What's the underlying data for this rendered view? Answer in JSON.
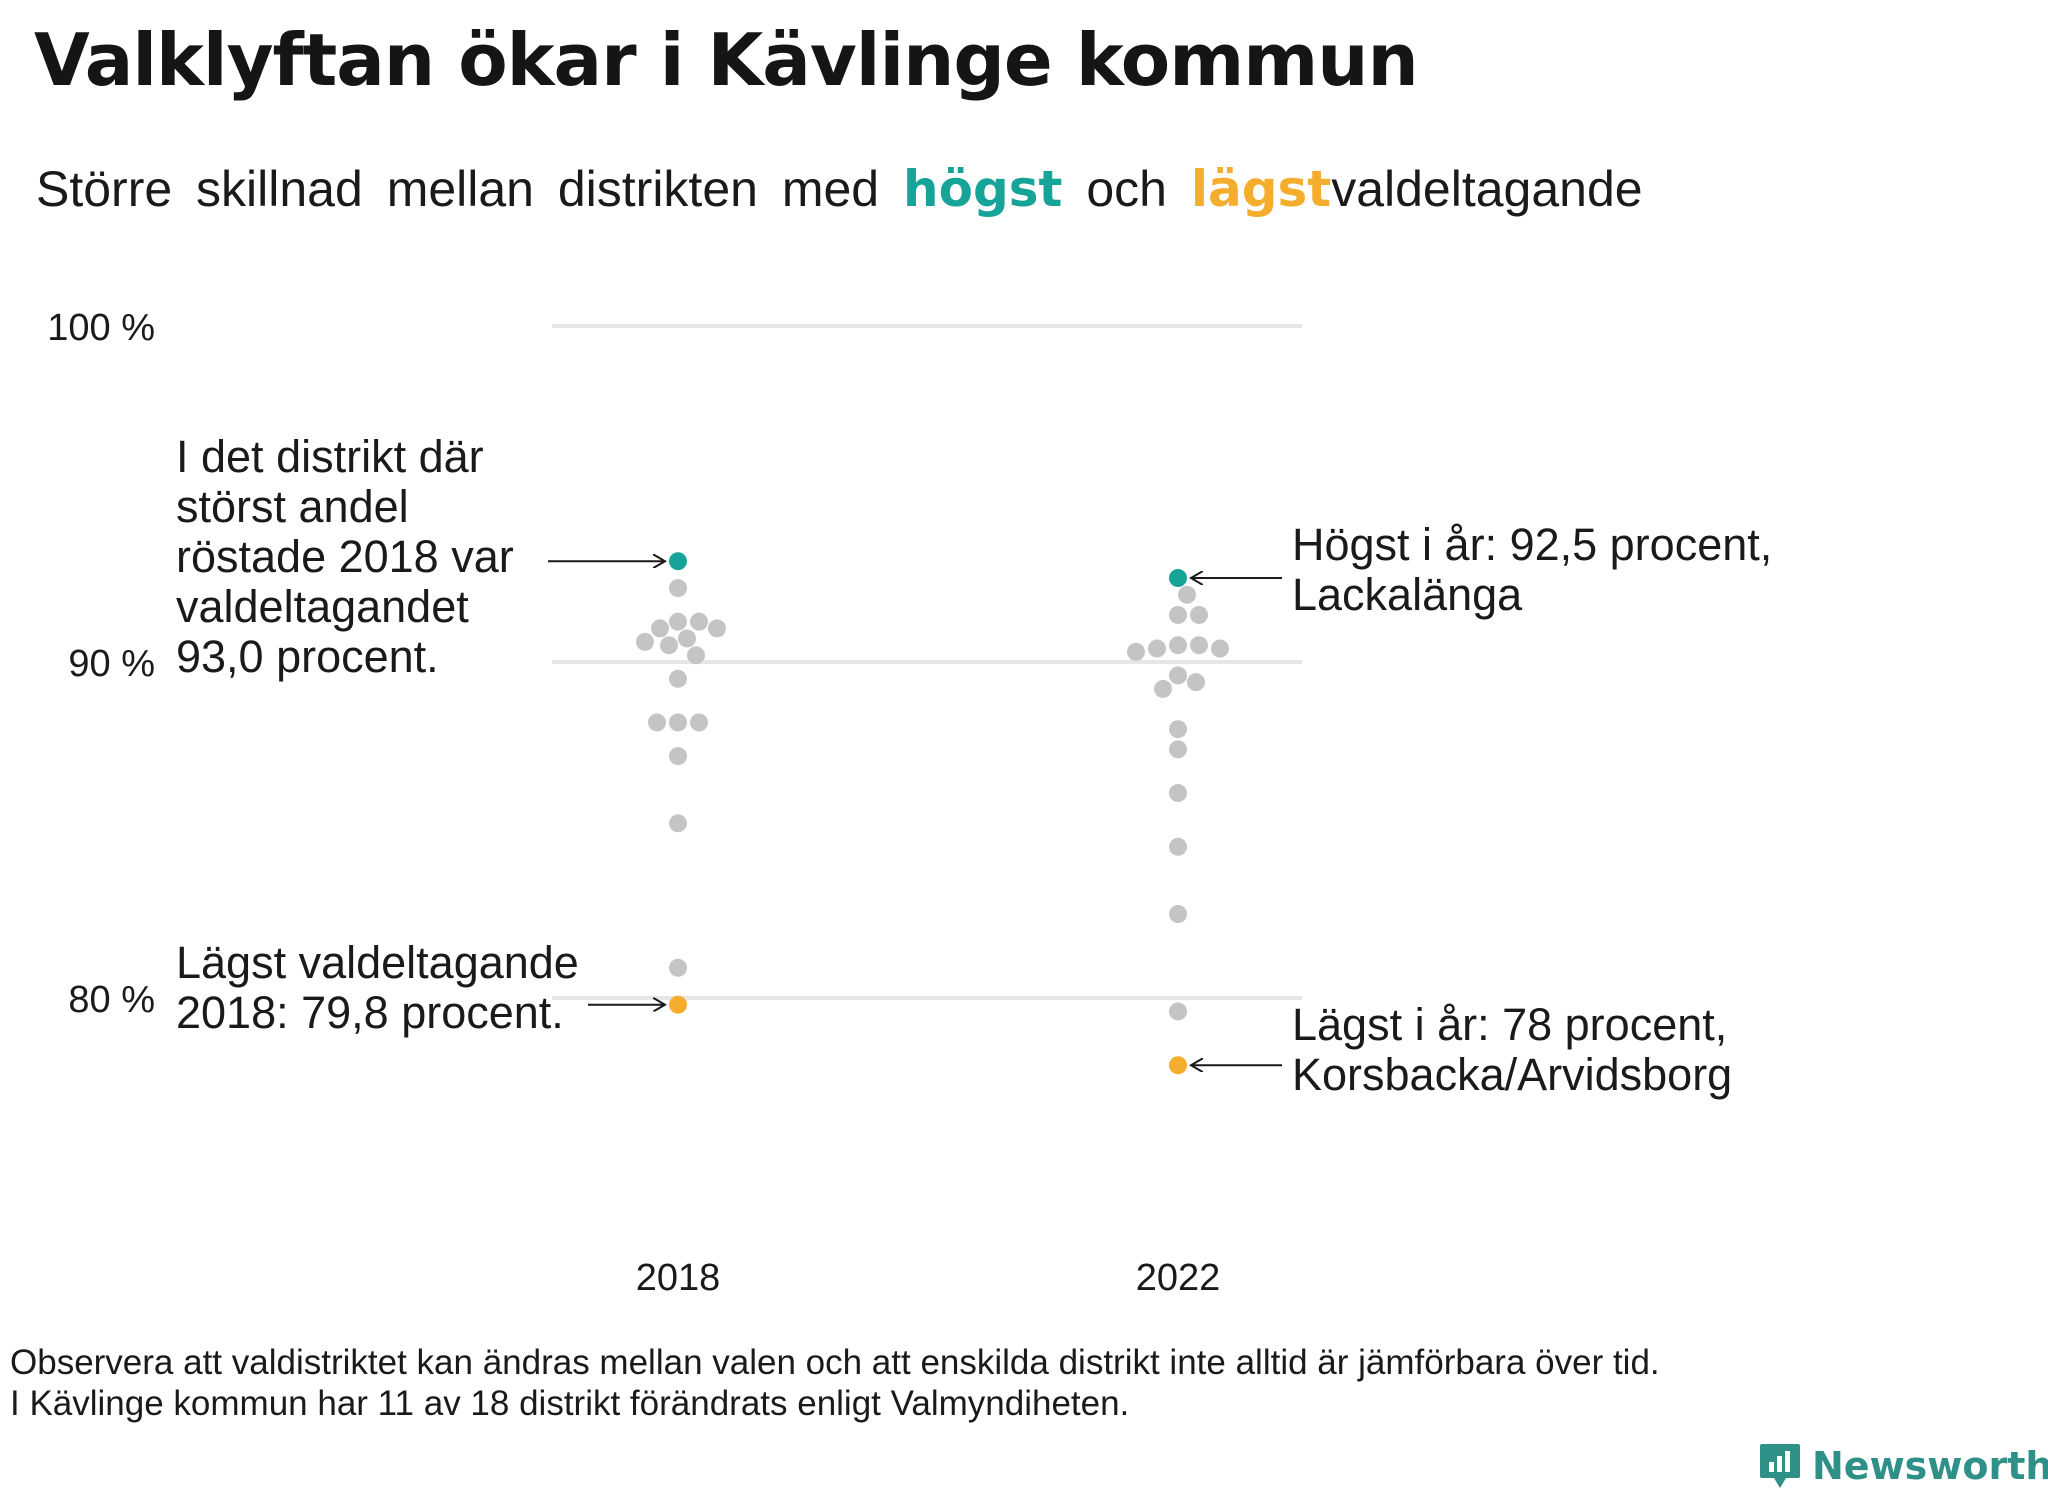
{
  "title": "Valklyftan ökar i Kävlinge kommun",
  "subtitle": {
    "part1": "Större skillnad mellan distrikten med",
    "highest": "högst",
    "middle": "och",
    "lowest": "lägst",
    "part2": "valdeltagande"
  },
  "colors": {
    "highest": "#16a398",
    "lowest": "#f5ad2e",
    "other": "#c4c4c4",
    "grid": "#e6e6e6",
    "brand": "#2f9088"
  },
  "chart_data": {
    "type": "scatter",
    "subtype": "beeswarm",
    "title": "Valklyftan ökar i Kävlinge kommun",
    "xlabel": "",
    "ylabel": "",
    "ylim": [
      75,
      100
    ],
    "yticks": [
      {
        "value": 80,
        "label": "80 %"
      },
      {
        "value": 90,
        "label": "90 %"
      },
      {
        "value": 100,
        "label": "100 %"
      }
    ],
    "grid": true,
    "categories": [
      "2018",
      "2022"
    ],
    "series": [
      {
        "name": "2018",
        "values": [
          93.0,
          92.2,
          91.2,
          91.2,
          91.0,
          91.0,
          90.7,
          90.6,
          90.5,
          90.2,
          89.5,
          88.2,
          88.2,
          88.2,
          87.2,
          85.2,
          80.9,
          79.8
        ],
        "highest": 93.0,
        "lowest": 79.8
      },
      {
        "name": "2022",
        "values": [
          92.5,
          92.0,
          91.4,
          91.4,
          90.5,
          90.5,
          90.4,
          90.4,
          90.3,
          89.6,
          89.4,
          89.2,
          88.0,
          87.4,
          86.1,
          84.5,
          82.5,
          79.6,
          78.0
        ],
        "highest": 92.5,
        "lowest": 78.0
      }
    ],
    "annotations": [
      {
        "target": "2018-highest",
        "lines": [
          "I det distrikt där",
          "störst andel",
          "röstade 2018 var",
          "valdeltagandet",
          "93,0 procent."
        ]
      },
      {
        "target": "2018-lowest",
        "lines": [
          "Lägst valdeltagande",
          "2018: 79,8 procent."
        ]
      },
      {
        "target": "2022-highest",
        "lines": [
          "Högst i år: 92,5 procent,",
          "Lackalänga"
        ]
      },
      {
        "target": "2022-lowest",
        "lines": [
          "Lägst i år: 78 procent,",
          "Korsbacka/Arvidsborg"
        ]
      }
    ]
  },
  "footnote": [
    "Observera att valdistriktet kan ändras mellan valen och att enskilda distrikt inte alltid är jämförbara över tid.",
    "I Kävlinge kommun har 11 av 18 distrikt förändrats enligt Valmyndiheten."
  ],
  "brand": {
    "name": "Newsworthy",
    "icon": "bar-chart-speech-bubble-icon"
  }
}
